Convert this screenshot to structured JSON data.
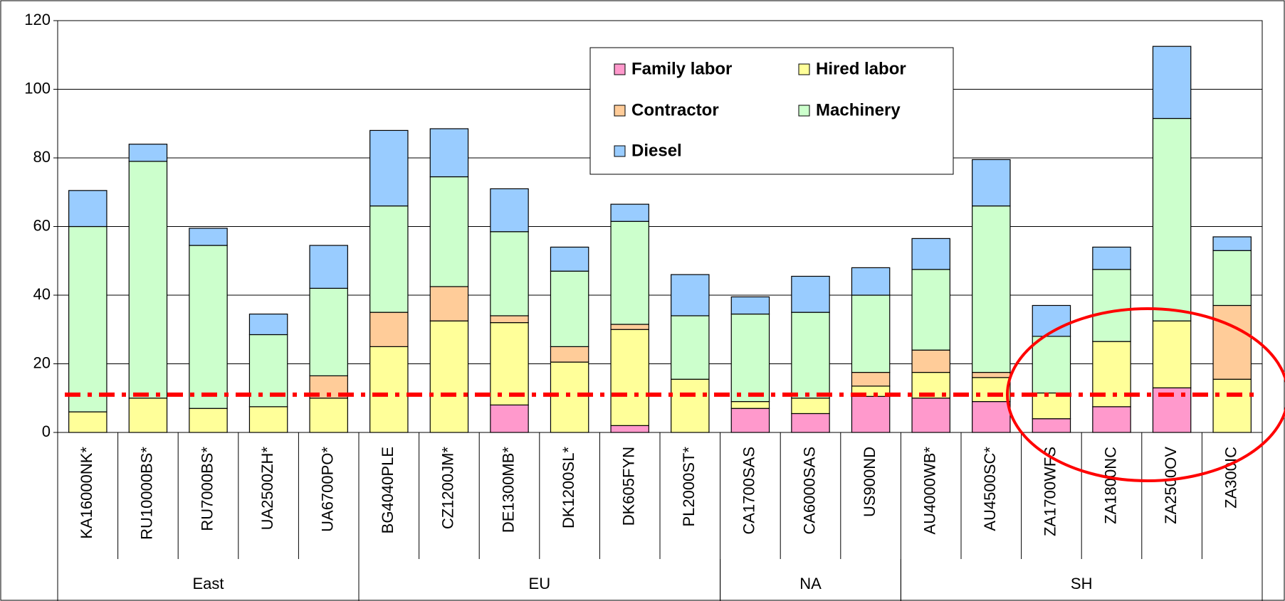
{
  "chart_data": {
    "type": "bar",
    "stacked": true,
    "categories": [
      "KA16000NK*",
      "RU10000BS*",
      "RU7000BS*",
      "UA2500ZH*",
      "UA6700PO*",
      "BG4040PLE",
      "CZ1200JM*",
      "DE1300MB*",
      "DK1200SL*",
      "DK605FYN",
      "PL2000ST*",
      "CA1700SAS",
      "CA6000SAS",
      "US900ND",
      "AU4000WB*",
      "AU4500SC*",
      "ZA1700WFS",
      "ZA1800NC",
      "ZA2500OV",
      "ZA300IC"
    ],
    "groups": [
      {
        "name": "East",
        "count": 5
      },
      {
        "name": "EU",
        "count": 6
      },
      {
        "name": "NA",
        "count": 3
      },
      {
        "name": "SH",
        "count": 6
      }
    ],
    "series": [
      {
        "name": "Family labor",
        "color": "#ff99cc",
        "values": [
          0,
          0,
          0,
          0,
          0,
          0,
          0,
          8,
          0,
          2,
          0,
          7,
          5.5,
          10.5,
          10,
          9,
          4,
          7.5,
          13,
          0
        ]
      },
      {
        "name": "Hired labor",
        "color": "#ffff99",
        "values": [
          6,
          10,
          7,
          7.5,
          10,
          25,
          32.5,
          24,
          20.5,
          28,
          15.5,
          2,
          4.5,
          3,
          7.5,
          7,
          7.5,
          19,
          19.5,
          15.5
        ]
      },
      {
        "name": "Contractor",
        "color": "#ffcc99",
        "values": [
          0,
          0,
          0,
          0,
          6.5,
          10,
          10,
          2,
          4.5,
          1.5,
          0,
          0,
          0,
          4,
          6.5,
          1.5,
          0,
          0,
          0,
          21.5
        ]
      },
      {
        "name": "Machinery",
        "color": "#ccffcc",
        "values": [
          54,
          69,
          47.5,
          21,
          25.5,
          31,
          32,
          24.5,
          22,
          30,
          18.5,
          25.5,
          25,
          22.5,
          23.5,
          48.5,
          16.5,
          21,
          59,
          16
        ]
      },
      {
        "name": "Diesel",
        "color": "#99ccff",
        "values": [
          10.5,
          5,
          5,
          6,
          12.5,
          22,
          14,
          12.5,
          7,
          5,
          12,
          5,
          10.5,
          8,
          9,
          13.5,
          9,
          6.5,
          21,
          4
        ]
      }
    ],
    "reference_line": 11,
    "ylim": [
      0,
      120
    ],
    "yticks": [
      0,
      20,
      40,
      60,
      80,
      100,
      120
    ],
    "grid": true,
    "legend": "top"
  }
}
